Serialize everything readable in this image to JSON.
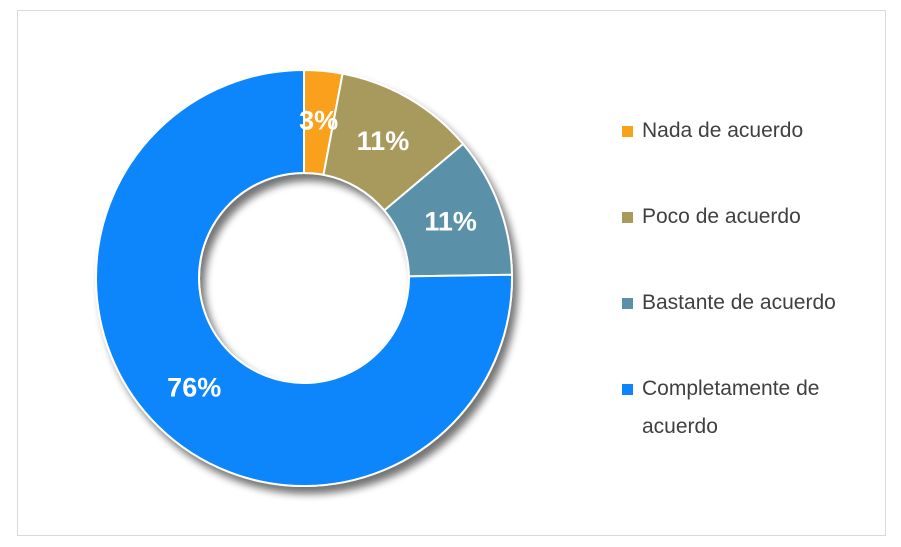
{
  "chart_data": {
    "type": "donut",
    "categories": [
      "Nada de acuerdo",
      "Poco de acuerdo",
      "Bastante de acuerdo",
      "Completamente de acuerdo"
    ],
    "values": [
      3,
      11,
      11,
      76
    ],
    "value_labels": [
      "3%",
      "11%",
      "11%",
      "76%"
    ],
    "colors": [
      "#f9a11b",
      "#a89a5c",
      "#5a91a8",
      "#0b85fb"
    ],
    "legend": "right"
  }
}
